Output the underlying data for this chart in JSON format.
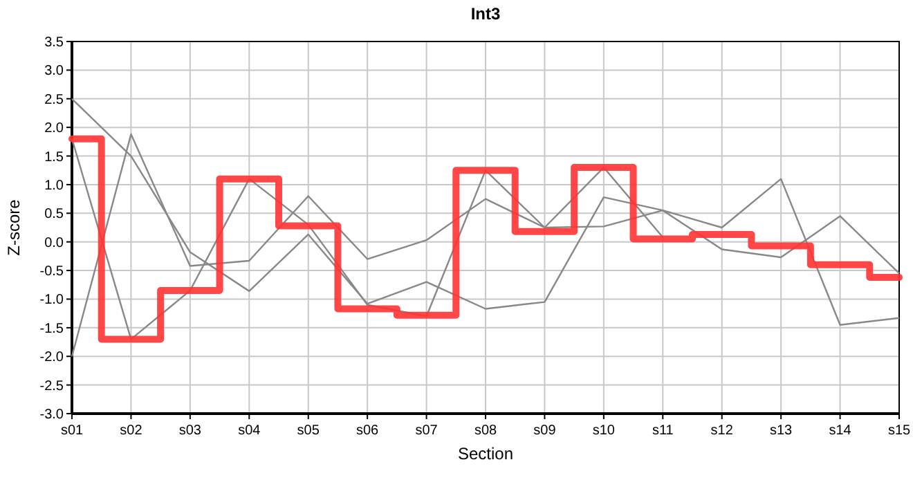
{
  "chart_data": {
    "type": "line",
    "title": "Int3",
    "xlabel": "Section",
    "ylabel": "Z-score",
    "categories": [
      "s01",
      "s02",
      "s03",
      "s04",
      "s05",
      "s06",
      "s07",
      "s08",
      "s09",
      "s10",
      "s11",
      "s12",
      "s13",
      "s14",
      "s15"
    ],
    "series": [
      {
        "color": "#888888",
        "values": [
          2.5,
          1.5,
          -0.18,
          -0.86,
          0.13,
          -1.08,
          -0.7,
          -1.17,
          -1.05,
          0.78,
          0.55,
          -0.13,
          -0.27,
          0.45,
          -0.55
        ]
      },
      {
        "color": "#888888",
        "values": [
          -2.0,
          1.88,
          -0.42,
          -0.33,
          0.8,
          -0.3,
          0.03,
          0.75,
          0.25,
          0.27,
          0.55,
          0.25,
          1.1,
          -1.45,
          -1.33
        ]
      },
      {
        "color": "#888888",
        "values": [
          1.8,
          -1.7,
          -0.85,
          1.1,
          0.3,
          -1.1,
          -1.3,
          1.25,
          0.25,
          1.3,
          0.08,
          null,
          null,
          null,
          null
        ]
      },
      {
        "type": "step",
        "color": "#ff3333",
        "values": [
          1.8,
          -1.7,
          -0.85,
          1.1,
          0.28,
          -1.17,
          -1.28,
          1.25,
          0.18,
          1.3,
          0.05,
          0.13,
          -0.07,
          -0.4,
          -0.62
        ]
      }
    ],
    "ylim": [
      -3,
      3.5
    ],
    "yticks": [
      {
        "value": -3,
        "label": "-3.0"
      },
      -2.5,
      {
        "value": -2,
        "label": "-2.0"
      },
      -1.5,
      {
        "value": -1,
        "label": "-1.0"
      },
      -0.5,
      {
        "value": 0,
        "label": "0.0"
      },
      0.5,
      {
        "value": 1,
        "label": "1.0"
      },
      1.5,
      {
        "value": 2,
        "label": "2.0"
      },
      2.5,
      {
        "value": 3,
        "label": "3.0"
      },
      3.5
    ],
    "grid": true,
    "marker": "none",
    "line_style": "solid"
  }
}
